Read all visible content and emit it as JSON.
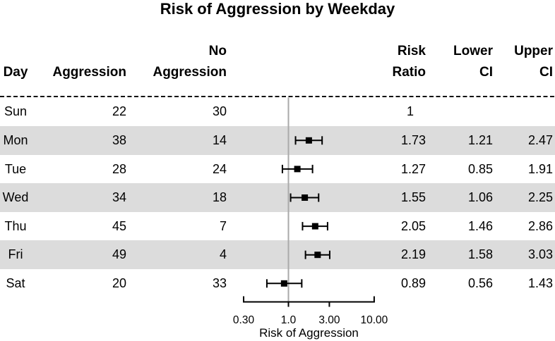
{
  "title": "Risk of Aggression by Weekday",
  "table": {
    "headers": {
      "day": "Day",
      "aggression": "Aggression",
      "no_aggression_line1": "No",
      "no_aggression_line2": "Aggression",
      "risk_ratio_line1": "Risk",
      "risk_ratio_line2": "Ratio",
      "lower_ci_line1": "Lower",
      "lower_ci_line2": "CI",
      "upper_ci_line1": "Upper",
      "upper_ci_line2": "CI"
    },
    "rows": [
      {
        "day": "Sun",
        "aggression": "22",
        "no_aggression": "30",
        "risk_ratio": "1",
        "lower_ci": "",
        "upper_ci": "",
        "shaded": false
      },
      {
        "day": "Mon",
        "aggression": "38",
        "no_aggression": "14",
        "risk_ratio": "1.73",
        "lower_ci": "1.21",
        "upper_ci": "2.47",
        "shaded": true
      },
      {
        "day": "Tue",
        "aggression": "28",
        "no_aggression": "24",
        "risk_ratio": "1.27",
        "lower_ci": "0.85",
        "upper_ci": "1.91",
        "shaded": false
      },
      {
        "day": "Wed",
        "aggression": "34",
        "no_aggression": "18",
        "risk_ratio": "1.55",
        "lower_ci": "1.06",
        "upper_ci": "2.25",
        "shaded": true
      },
      {
        "day": "Thu",
        "aggression": "45",
        "no_aggression": "7",
        "risk_ratio": "2.05",
        "lower_ci": "1.46",
        "upper_ci": "2.86",
        "shaded": false
      },
      {
        "day": "Fri",
        "aggression": "49",
        "no_aggression": "4",
        "risk_ratio": "2.19",
        "lower_ci": "1.58",
        "upper_ci": "3.03",
        "shaded": true
      },
      {
        "day": "Sat",
        "aggression": "20",
        "no_aggression": "33",
        "risk_ratio": "0.89",
        "lower_ci": "0.56",
        "upper_ci": "1.43",
        "shaded": false
      }
    ]
  },
  "chart_data": {
    "type": "scatter",
    "subtype": "forest-plot",
    "title": "Risk of Aggression by Weekday",
    "xlabel": "Risk of Aggression",
    "x_scale": "log",
    "x_range": [
      0.3,
      10
    ],
    "reference_value": 1,
    "x_ticks": [
      {
        "value": 0.3,
        "label": "0.30"
      },
      {
        "value": 1.0,
        "label": "1.0"
      },
      {
        "value": 3.0,
        "label": "3.00"
      },
      {
        "value": 10.0,
        "label": "10.00"
      }
    ],
    "points": [
      {
        "day": "Sun",
        "risk_ratio": 1,
        "lower_ci": null,
        "upper_ci": null
      },
      {
        "day": "Mon",
        "risk_ratio": 1.73,
        "lower_ci": 1.21,
        "upper_ci": 2.47
      },
      {
        "day": "Tue",
        "risk_ratio": 1.27,
        "lower_ci": 0.85,
        "upper_ci": 1.91
      },
      {
        "day": "Wed",
        "risk_ratio": 1.55,
        "lower_ci": 1.06,
        "upper_ci": 2.25
      },
      {
        "day": "Thu",
        "risk_ratio": 2.05,
        "lower_ci": 1.46,
        "upper_ci": 2.86
      },
      {
        "day": "Fri",
        "risk_ratio": 2.19,
        "lower_ci": 1.58,
        "upper_ci": 3.03
      },
      {
        "day": "Sat",
        "risk_ratio": 0.89,
        "lower_ci": 0.56,
        "upper_ci": 1.43
      }
    ]
  },
  "colors": {
    "band": "#dcdcdc",
    "reference_line": "#aaaaaa",
    "marker": "#000000",
    "axis": "#000000",
    "text": "#000000",
    "background": "#ffffff"
  }
}
